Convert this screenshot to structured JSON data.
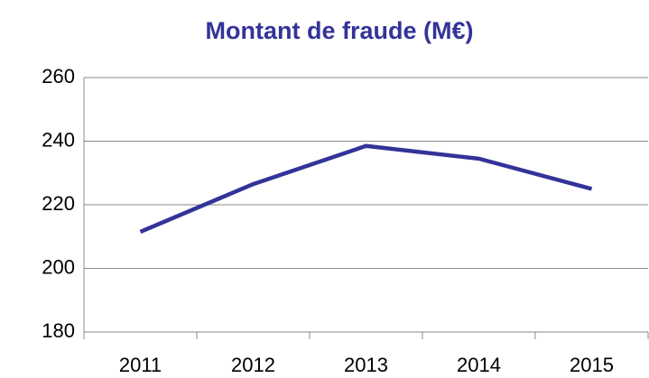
{
  "chart_data": {
    "type": "line",
    "title": "Montant de fraude (M€)",
    "categories": [
      "2011",
      "2012",
      "2013",
      "2014",
      "2015"
    ],
    "series": [
      {
        "name": "Montant de fraude",
        "color": "#333399",
        "values": [
          211.5,
          226.5,
          238.5,
          234.5,
          225
        ]
      }
    ],
    "ylim": [
      180,
      260
    ],
    "yticks": [
      180,
      200,
      220,
      240,
      260
    ],
    "grid": true
  }
}
